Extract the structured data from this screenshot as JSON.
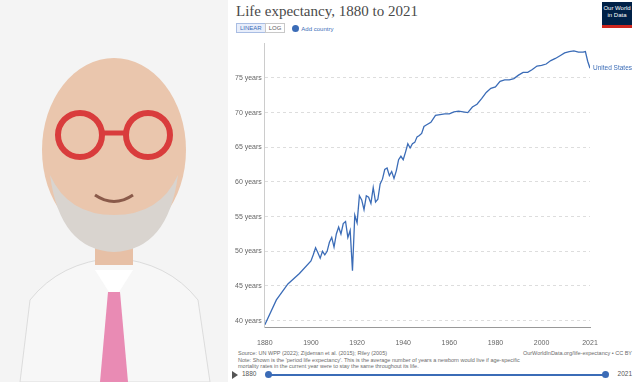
{
  "header": {
    "title": "Life expectancy, 1880 to 2021",
    "buttons": [
      "LINEAR",
      "LOG"
    ],
    "add_country": "Add country",
    "logo": "Our World in Data"
  },
  "chart_data": {
    "type": "line",
    "x": [
      1880,
      1885,
      1890,
      1895,
      1900,
      1901,
      1902,
      1903,
      1904,
      1905,
      1906,
      1907,
      1908,
      1909,
      1910,
      1911,
      1912,
      1913,
      1914,
      1915,
      1916,
      1917,
      1918,
      1919,
      1920,
      1921,
      1922,
      1923,
      1924,
      1925,
      1926,
      1927,
      1928,
      1929,
      1930,
      1931,
      1932,
      1933,
      1934,
      1935,
      1936,
      1937,
      1938,
      1939,
      1940,
      1941,
      1942,
      1943,
      1944,
      1945,
      1946,
      1947,
      1948,
      1949,
      1950,
      1952,
      1954,
      1956,
      1958,
      1960,
      1962,
      1964,
      1966,
      1968,
      1970,
      1972,
      1974,
      1976,
      1978,
      1980,
      1982,
      1984,
      1986,
      1988,
      1990,
      1992,
      1994,
      1996,
      1998,
      2000,
      2002,
      2004,
      2006,
      2008,
      2010,
      2012,
      2014,
      2016,
      2018,
      2019,
      2020,
      2021
    ],
    "series": [
      {
        "name": "United States",
        "color": "#3b6cb7",
        "values": [
          39.4,
          43,
          45.3,
          46.8,
          48.6,
          49.5,
          50.5,
          49.8,
          49,
          50,
          49.5,
          50,
          51.3,
          52,
          50.6,
          52.5,
          53.5,
          52.5,
          54,
          54.3,
          52,
          53,
          47.2,
          55.2,
          54.1,
          58,
          57.4,
          56,
          58,
          57.8,
          56.9,
          59.2,
          57.1,
          57.5,
          59.7,
          60.4,
          61.8,
          62,
          60.9,
          61.5,
          60.5,
          61.6,
          63.2,
          63.7,
          63.2,
          64.3,
          65.5,
          64.9,
          65.5,
          65.7,
          66.5,
          66.7,
          67,
          68,
          68.2,
          68.6,
          69.6,
          69.7,
          69.8,
          69.8,
          70.1,
          70.2,
          70.1,
          70,
          70.8,
          71.2,
          72,
          72.9,
          73.5,
          73.7,
          74.5,
          74.7,
          74.7,
          74.9,
          75.4,
          75.8,
          75.8,
          76.2,
          76.7,
          76.8,
          77,
          77.5,
          77.8,
          78.2,
          78.6,
          78.8,
          78.9,
          78.7,
          78.7,
          78.8,
          77.4,
          76.4
        ]
      }
    ],
    "xlim": [
      1880,
      2021
    ],
    "xticks": [
      1880,
      1900,
      1920,
      1940,
      1960,
      1980,
      2000,
      2021
    ],
    "ylim": [
      39,
      80
    ],
    "yticks": [
      {
        "value": 40,
        "label": "40 years"
      },
      {
        "value": 45,
        "label": "45 years"
      },
      {
        "value": 50,
        "label": "50 years"
      },
      {
        "value": 55,
        "label": "55 years"
      },
      {
        "value": 60,
        "label": "60 years"
      },
      {
        "value": 65,
        "label": "65 years"
      },
      {
        "value": 70,
        "label": "70 years"
      },
      {
        "value": 75,
        "label": "75 years"
      }
    ],
    "grid": true
  },
  "footer": {
    "source": "Source: UN WPP (2022); Zijdeman et al. (2015); Riley (2005)",
    "note": "Note: Shown is the 'period life expectancy'. This is the average number of years a newborn would live if age-specific mortality rates in the current year were to stay the same throughout its life.",
    "url": "OurWorldInData.org/life-expectancy • CC BY"
  },
  "timeline": {
    "start": "1880",
    "end": "2021"
  }
}
